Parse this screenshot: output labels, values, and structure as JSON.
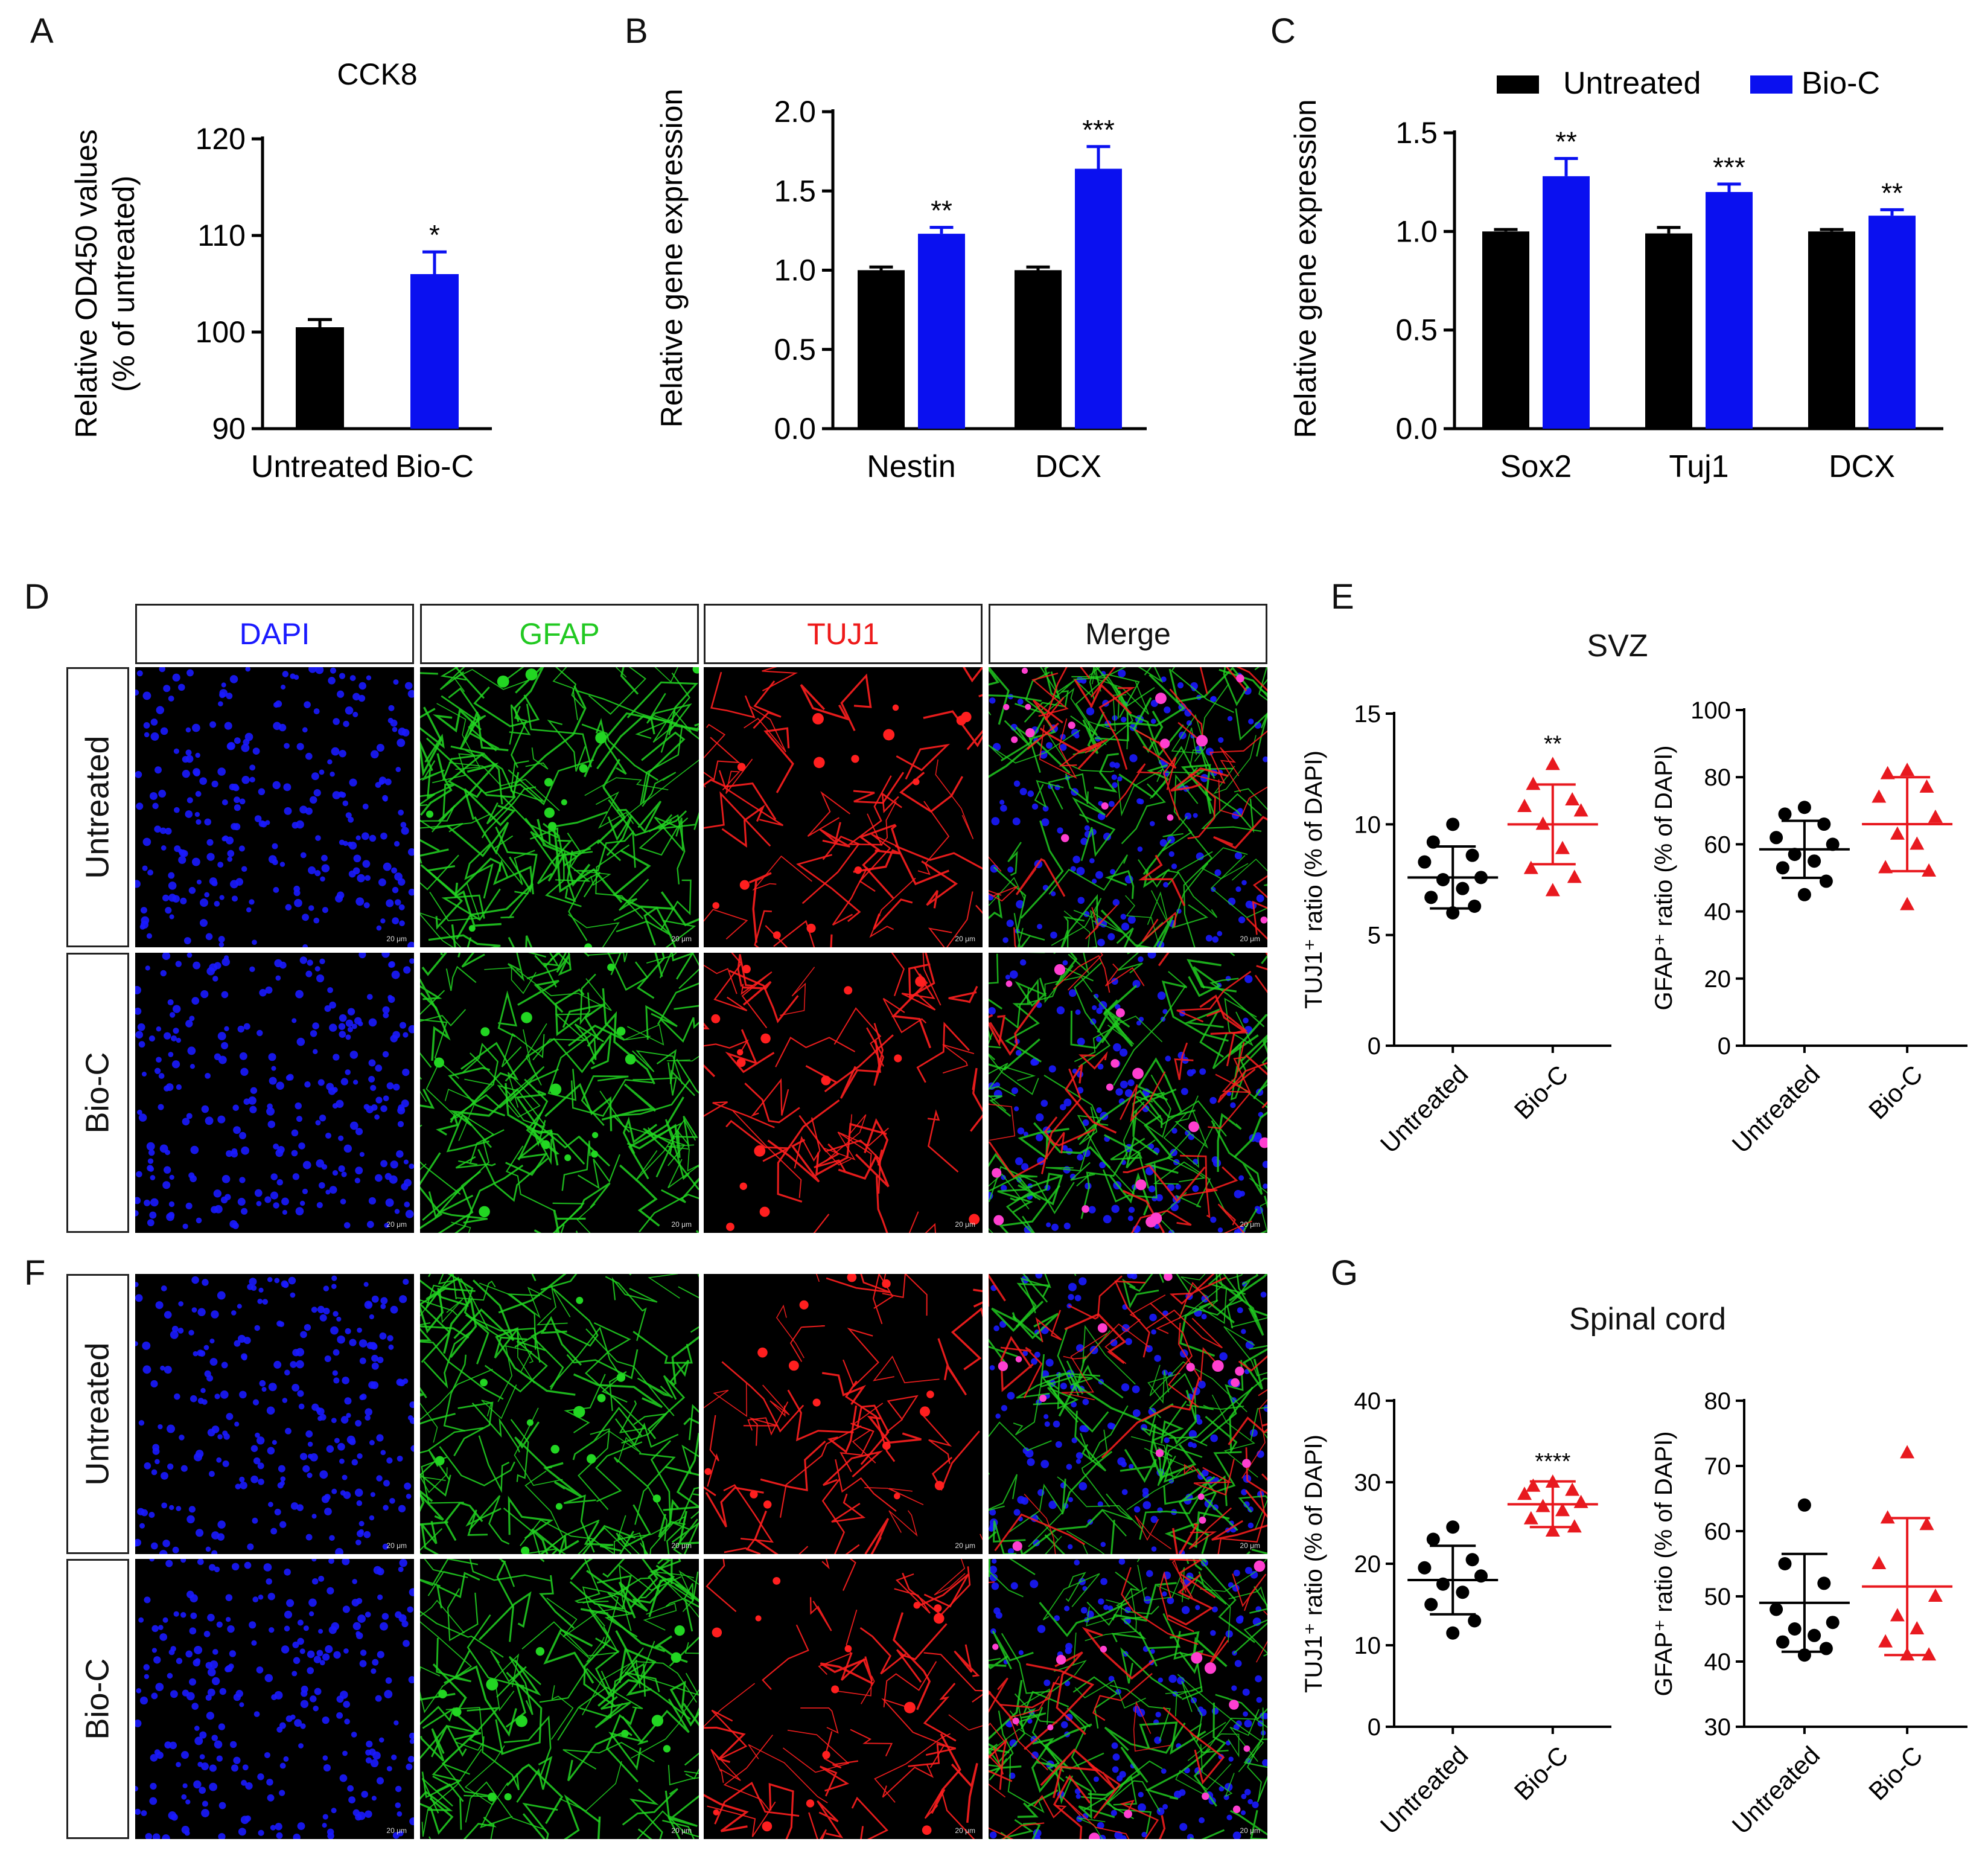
{
  "panel_letters": [
    "A",
    "B",
    "C",
    "D",
    "E",
    "F",
    "G"
  ],
  "colors": {
    "untreated": "#000000",
    "bioc": "#0a10f0",
    "bioc_dot": "#e8191f",
    "dapi": "#1a1aff",
    "gfap": "#22d622",
    "tuj1": "#ff1f1f"
  },
  "micro": {
    "columns": [
      "DAPI",
      "GFAP",
      "TUJ1",
      "Merge"
    ],
    "rows": [
      "Untreated",
      "Bio-C"
    ],
    "scale_label": "20 μm"
  },
  "chart_data": [
    {
      "id": "A",
      "type": "bar",
      "title": "CCK8",
      "ylabel": "Relative OD450 values",
      "ylabel2": "(% of untreated)",
      "categories": [
        "Untreated",
        "Bio-C"
      ],
      "values": [
        100.5,
        106
      ],
      "errors": [
        0.8,
        2.3
      ],
      "sig": [
        "",
        "*"
      ],
      "ylim": [
        90,
        120
      ],
      "yticks": [
        90,
        100,
        110,
        120
      ]
    },
    {
      "id": "B",
      "type": "bar",
      "title": "",
      "ylabel": "Relative gene expression",
      "categories": [
        "Nestin",
        "DCX"
      ],
      "series": [
        {
          "name": "Untreated",
          "values": [
            1.0,
            1.0
          ],
          "errors": [
            0.02,
            0.02
          ],
          "sig": [
            "",
            ""
          ]
        },
        {
          "name": "Bio-C",
          "values": [
            1.23,
            1.64
          ],
          "errors": [
            0.04,
            0.14
          ],
          "sig": [
            "**",
            "***"
          ]
        }
      ],
      "ylim": [
        0,
        2
      ],
      "yticks": [
        "0.0",
        "0.5",
        "1.0",
        "1.5",
        "2.0"
      ]
    },
    {
      "id": "C",
      "type": "bar",
      "title": "",
      "ylabel": "Relative gene expression",
      "legend": [
        "Untreated",
        "Bio-C"
      ],
      "categories": [
        "Sox2",
        "Tuj1",
        "DCX"
      ],
      "series": [
        {
          "name": "Untreated",
          "values": [
            1.0,
            0.99,
            1.0
          ],
          "errors": [
            0.01,
            0.03,
            0.01
          ],
          "sig": [
            "",
            "",
            ""
          ]
        },
        {
          "name": "Bio-C",
          "values": [
            1.28,
            1.2,
            1.08
          ],
          "errors": [
            0.09,
            0.04,
            0.03
          ],
          "sig": [
            "**",
            "***",
            "**"
          ]
        }
      ],
      "ylim": [
        0,
        1.5
      ],
      "yticks": [
        "0.0",
        "0.5",
        "1.0",
        "1.5"
      ]
    },
    {
      "id": "E1",
      "type": "scatter",
      "group_title": "SVZ",
      "ylabel": "TUJ1⁺ ratio (% of DAPI)",
      "categories": [
        "Untreated",
        "Bio-C"
      ],
      "points": [
        [
          10.0,
          9.2,
          8.6,
          8.3,
          7.6,
          7.5,
          7.1,
          6.7,
          6.3,
          6.0
        ],
        [
          12.7,
          11.8,
          11.1,
          10.8,
          10.6,
          10.0,
          8.9,
          8.0,
          7.6,
          7.0
        ]
      ],
      "mean": [
        7.6,
        10.0
      ],
      "sd": [
        1.4,
        1.8
      ],
      "sig": [
        "",
        "**"
      ],
      "ylim": [
        0,
        15
      ],
      "yticks": [
        0,
        5,
        10,
        15
      ]
    },
    {
      "id": "E2",
      "type": "scatter",
      "ylabel": "GFAP⁺ ratio (% of DAPI)",
      "categories": [
        "Untreated",
        "Bio-C"
      ],
      "points": [
        [
          71,
          69,
          66,
          62,
          60,
          57,
          55,
          53,
          49,
          45
        ],
        [
          82,
          81,
          77,
          74,
          68,
          63,
          60,
          53,
          52,
          42
        ]
      ],
      "mean": [
        58.5,
        66
      ],
      "sd": [
        8.5,
        14
      ],
      "sig": [
        "",
        ""
      ],
      "ylim": [
        0,
        100
      ],
      "yticks": [
        0,
        20,
        40,
        60,
        80,
        100
      ]
    },
    {
      "id": "G1",
      "type": "scatter",
      "group_title": "Spinal cord",
      "ylabel": "TUJ1⁺ ratio (% of DAPI)",
      "categories": [
        "Untreated",
        "Bio-C"
      ],
      "points": [
        [
          24.5,
          23,
          20.5,
          19.5,
          18.5,
          17.5,
          16.5,
          15,
          13,
          11.5
        ],
        [
          30,
          29.5,
          29,
          28.5,
          27.5,
          27,
          26.5,
          25.5,
          24.5,
          24
        ]
      ],
      "mean": [
        18,
        27.3
      ],
      "sd": [
        4.2,
        2.8
      ],
      "sig": [
        "",
        "****"
      ],
      "ylim": [
        0,
        40
      ],
      "yticks": [
        0,
        10,
        20,
        30,
        40
      ]
    },
    {
      "id": "G2",
      "type": "scatter",
      "ylabel": "GFAP⁺ ratio (% of DAPI)",
      "categories": [
        "Untreated",
        "Bio-C"
      ],
      "points": [
        [
          64,
          55,
          52,
          48,
          46,
          45,
          44,
          43,
          42,
          41
        ],
        [
          72,
          62,
          61,
          55,
          50,
          47,
          45,
          43,
          41,
          41
        ]
      ],
      "mean": [
        49,
        51.5
      ],
      "sd": [
        7.5,
        10.5
      ],
      "sig": [
        "",
        ""
      ],
      "ylim": [
        30,
        80
      ],
      "yticks": [
        30,
        40,
        50,
        60,
        70,
        80
      ]
    }
  ]
}
